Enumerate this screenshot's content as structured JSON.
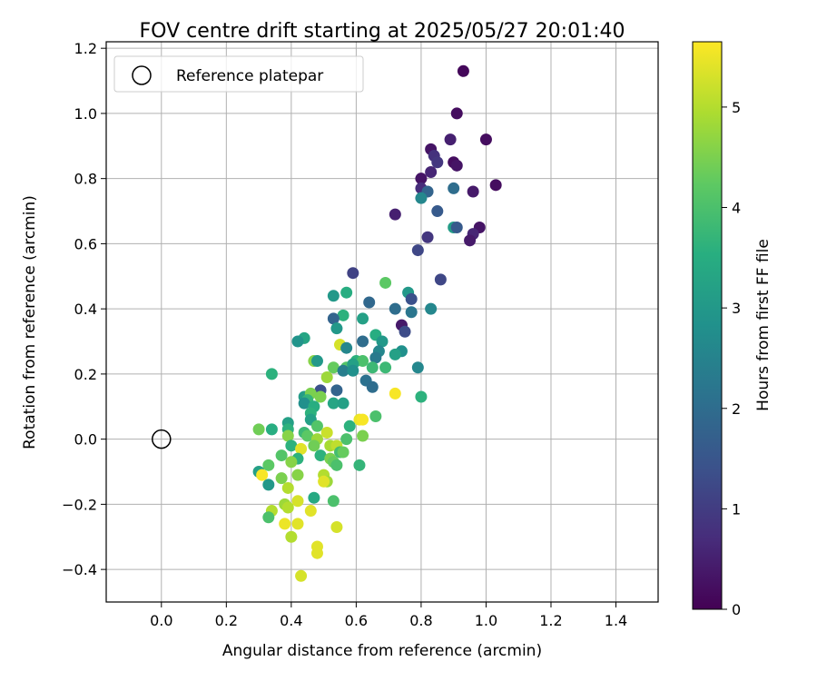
{
  "chart_data": {
    "type": "scatter",
    "title": "FOV centre drift starting at 2025/05/27 20:01:40",
    "xlabel": "Angular distance from reference (arcmin)",
    "ylabel": "Rotation from reference (arcmin)",
    "xlim": [
      -0.17,
      1.53
    ],
    "ylim": [
      -0.5,
      1.22
    ],
    "xticks": [
      "0.0",
      "0.2",
      "0.4",
      "0.6",
      "0.8",
      "1.0",
      "1.2",
      "1.4"
    ],
    "xtick_values": [
      0,
      0.2,
      0.4,
      0.6,
      0.8,
      1.0,
      1.2,
      1.4
    ],
    "yticks": [
      "−0.4",
      "−0.2",
      "0.0",
      "0.2",
      "0.4",
      "0.6",
      "0.8",
      "1.0",
      "1.2"
    ],
    "ytick_values": [
      -0.4,
      -0.2,
      0,
      0.2,
      0.4,
      0.6,
      0.8,
      1.0,
      1.2
    ],
    "grid": true,
    "legend": {
      "position": "top-left",
      "entries": [
        "Reference platepar"
      ]
    },
    "reference_point": {
      "x": 0.0,
      "y": 0.0
    },
    "colorbar": {
      "label": "Hours from first FF file",
      "min": 0,
      "max": 5.65,
      "ticks": [
        "0",
        "1",
        "2",
        "3",
        "4",
        "5"
      ],
      "tick_values": [
        0,
        1,
        2,
        3,
        4,
        5
      ],
      "colormap": "viridis"
    },
    "points": [
      {
        "x": 0.93,
        "y": 1.13,
        "c": 0.1
      },
      {
        "x": 0.91,
        "y": 1.0,
        "c": 0.2
      },
      {
        "x": 1.0,
        "y": 0.92,
        "c": 0.2
      },
      {
        "x": 0.89,
        "y": 0.92,
        "c": 0.5
      },
      {
        "x": 0.83,
        "y": 0.89,
        "c": 0.3
      },
      {
        "x": 0.84,
        "y": 0.87,
        "c": 0.8
      },
      {
        "x": 0.85,
        "y": 0.85,
        "c": 0.9
      },
      {
        "x": 0.9,
        "y": 0.85,
        "c": 0.2
      },
      {
        "x": 0.91,
        "y": 0.84,
        "c": 0.3
      },
      {
        "x": 0.83,
        "y": 0.82,
        "c": 0.6
      },
      {
        "x": 0.8,
        "y": 0.8,
        "c": 0.3
      },
      {
        "x": 1.03,
        "y": 0.78,
        "c": 0.2
      },
      {
        "x": 0.8,
        "y": 0.77,
        "c": 0.7
      },
      {
        "x": 0.82,
        "y": 0.76,
        "c": 1.8
      },
      {
        "x": 0.9,
        "y": 0.77,
        "c": 2.0
      },
      {
        "x": 0.96,
        "y": 0.76,
        "c": 0.4
      },
      {
        "x": 0.8,
        "y": 0.74,
        "c": 2.6
      },
      {
        "x": 0.85,
        "y": 0.7,
        "c": 1.6
      },
      {
        "x": 0.72,
        "y": 0.69,
        "c": 0.5
      },
      {
        "x": 0.9,
        "y": 0.65,
        "c": 3.1
      },
      {
        "x": 0.91,
        "y": 0.65,
        "c": 1.6
      },
      {
        "x": 0.98,
        "y": 0.65,
        "c": 0.3
      },
      {
        "x": 0.96,
        "y": 0.63,
        "c": 0.6
      },
      {
        "x": 0.82,
        "y": 0.62,
        "c": 0.9
      },
      {
        "x": 0.95,
        "y": 0.61,
        "c": 0.4
      },
      {
        "x": 0.79,
        "y": 0.58,
        "c": 1.2
      },
      {
        "x": 0.59,
        "y": 0.51,
        "c": 1.1
      },
      {
        "x": 0.86,
        "y": 0.49,
        "c": 1.2
      },
      {
        "x": 0.69,
        "y": 0.48,
        "c": 4.2
      },
      {
        "x": 0.76,
        "y": 0.45,
        "c": 3.0
      },
      {
        "x": 0.53,
        "y": 0.44,
        "c": 3.0
      },
      {
        "x": 0.57,
        "y": 0.45,
        "c": 3.5
      },
      {
        "x": 0.64,
        "y": 0.42,
        "c": 1.9
      },
      {
        "x": 0.77,
        "y": 0.43,
        "c": 1.4
      },
      {
        "x": 0.72,
        "y": 0.4,
        "c": 2.0
      },
      {
        "x": 0.77,
        "y": 0.39,
        "c": 2.2
      },
      {
        "x": 0.83,
        "y": 0.4,
        "c": 2.6
      },
      {
        "x": 0.56,
        "y": 0.38,
        "c": 3.6
      },
      {
        "x": 0.53,
        "y": 0.37,
        "c": 1.8
      },
      {
        "x": 0.62,
        "y": 0.37,
        "c": 3.2
      },
      {
        "x": 0.74,
        "y": 0.35,
        "c": 0.4
      },
      {
        "x": 0.54,
        "y": 0.34,
        "c": 3.0
      },
      {
        "x": 0.75,
        "y": 0.33,
        "c": 1.3
      },
      {
        "x": 0.66,
        "y": 0.32,
        "c": 3.5
      },
      {
        "x": 0.44,
        "y": 0.31,
        "c": 3.3
      },
      {
        "x": 0.42,
        "y": 0.3,
        "c": 2.9
      },
      {
        "x": 0.62,
        "y": 0.3,
        "c": 2.0
      },
      {
        "x": 0.68,
        "y": 0.3,
        "c": 3.0
      },
      {
        "x": 0.55,
        "y": 0.29,
        "c": 5.3
      },
      {
        "x": 0.57,
        "y": 0.28,
        "c": 2.6
      },
      {
        "x": 0.67,
        "y": 0.27,
        "c": 2.6
      },
      {
        "x": 0.74,
        "y": 0.27,
        "c": 2.8
      },
      {
        "x": 0.72,
        "y": 0.26,
        "c": 3.2
      },
      {
        "x": 0.66,
        "y": 0.25,
        "c": 2.3
      },
      {
        "x": 0.47,
        "y": 0.24,
        "c": 4.6
      },
      {
        "x": 0.48,
        "y": 0.24,
        "c": 3.0
      },
      {
        "x": 0.6,
        "y": 0.24,
        "c": 3.6
      },
      {
        "x": 0.62,
        "y": 0.24,
        "c": 4.0
      },
      {
        "x": 0.53,
        "y": 0.22,
        "c": 4.3
      },
      {
        "x": 0.57,
        "y": 0.22,
        "c": 4.1
      },
      {
        "x": 0.59,
        "y": 0.23,
        "c": 3.2
      },
      {
        "x": 0.65,
        "y": 0.22,
        "c": 3.8
      },
      {
        "x": 0.69,
        "y": 0.22,
        "c": 3.8
      },
      {
        "x": 0.79,
        "y": 0.22,
        "c": 2.6
      },
      {
        "x": 0.34,
        "y": 0.2,
        "c": 3.6
      },
      {
        "x": 0.56,
        "y": 0.21,
        "c": 2.4
      },
      {
        "x": 0.59,
        "y": 0.21,
        "c": 2.8
      },
      {
        "x": 0.51,
        "y": 0.19,
        "c": 4.8
      },
      {
        "x": 0.63,
        "y": 0.18,
        "c": 2.1
      },
      {
        "x": 0.65,
        "y": 0.16,
        "c": 2.0
      },
      {
        "x": 0.49,
        "y": 0.15,
        "c": 1.4
      },
      {
        "x": 0.54,
        "y": 0.15,
        "c": 1.8
      },
      {
        "x": 0.44,
        "y": 0.13,
        "c": 3.1
      },
      {
        "x": 0.46,
        "y": 0.14,
        "c": 4.5
      },
      {
        "x": 0.45,
        "y": 0.12,
        "c": 3.7
      },
      {
        "x": 0.49,
        "y": 0.13,
        "c": 4.5
      },
      {
        "x": 0.72,
        "y": 0.14,
        "c": 5.6
      },
      {
        "x": 0.8,
        "y": 0.13,
        "c": 3.6
      },
      {
        "x": 0.44,
        "y": 0.11,
        "c": 2.8
      },
      {
        "x": 0.53,
        "y": 0.11,
        "c": 3.3
      },
      {
        "x": 0.56,
        "y": 0.11,
        "c": 3.2
      },
      {
        "x": 0.47,
        "y": 0.1,
        "c": 3.5
      },
      {
        "x": 0.46,
        "y": 0.08,
        "c": 3.6
      },
      {
        "x": 0.46,
        "y": 0.06,
        "c": 3.2
      },
      {
        "x": 0.61,
        "y": 0.06,
        "c": 5.5
      },
      {
        "x": 0.62,
        "y": 0.06,
        "c": 5.6
      },
      {
        "x": 0.66,
        "y": 0.07,
        "c": 4.0
      },
      {
        "x": 0.39,
        "y": 0.05,
        "c": 3.2
      },
      {
        "x": 0.48,
        "y": 0.04,
        "c": 4.1
      },
      {
        "x": 0.58,
        "y": 0.04,
        "c": 3.6
      },
      {
        "x": 0.3,
        "y": 0.03,
        "c": 4.4
      },
      {
        "x": 0.34,
        "y": 0.03,
        "c": 3.5
      },
      {
        "x": 0.39,
        "y": 0.03,
        "c": 3.6
      },
      {
        "x": 0.51,
        "y": 0.02,
        "c": 5.2
      },
      {
        "x": 0.44,
        "y": 0.02,
        "c": 3.8
      },
      {
        "x": 0.39,
        "y": 0.01,
        "c": 4.6
      },
      {
        "x": 0.45,
        "y": 0.01,
        "c": 4.2
      },
      {
        "x": 0.48,
        "y": 0.0,
        "c": 4.8
      },
      {
        "x": 0.57,
        "y": 0.0,
        "c": 4.0
      },
      {
        "x": 0.62,
        "y": 0.01,
        "c": 4.5
      },
      {
        "x": 0.4,
        "y": -0.02,
        "c": 3.6
      },
      {
        "x": 0.43,
        "y": -0.03,
        "c": 5.4
      },
      {
        "x": 0.47,
        "y": -0.02,
        "c": 4.4
      },
      {
        "x": 0.52,
        "y": -0.02,
        "c": 4.9
      },
      {
        "x": 0.54,
        "y": -0.02,
        "c": 5.1
      },
      {
        "x": 0.55,
        "y": -0.04,
        "c": 3.9
      },
      {
        "x": 0.56,
        "y": -0.04,
        "c": 4.3
      },
      {
        "x": 0.49,
        "y": -0.05,
        "c": 3.6
      },
      {
        "x": 0.37,
        "y": -0.05,
        "c": 4.1
      },
      {
        "x": 0.42,
        "y": -0.06,
        "c": 3.6
      },
      {
        "x": 0.52,
        "y": -0.06,
        "c": 4.5
      },
      {
        "x": 0.4,
        "y": -0.07,
        "c": 4.6
      },
      {
        "x": 0.53,
        "y": -0.07,
        "c": 4.3
      },
      {
        "x": 0.54,
        "y": -0.08,
        "c": 4.0
      },
      {
        "x": 0.61,
        "y": -0.08,
        "c": 3.7
      },
      {
        "x": 0.33,
        "y": -0.08,
        "c": 4.2
      },
      {
        "x": 0.3,
        "y": -0.1,
        "c": 3.2
      },
      {
        "x": 0.31,
        "y": -0.11,
        "c": 5.6
      },
      {
        "x": 0.37,
        "y": -0.12,
        "c": 4.5
      },
      {
        "x": 0.42,
        "y": -0.11,
        "c": 4.6
      },
      {
        "x": 0.5,
        "y": -0.11,
        "c": 5.0
      },
      {
        "x": 0.51,
        "y": -0.13,
        "c": 4.8
      },
      {
        "x": 0.5,
        "y": -0.13,
        "c": 5.4
      },
      {
        "x": 0.33,
        "y": -0.14,
        "c": 3.0
      },
      {
        "x": 0.39,
        "y": -0.15,
        "c": 5.0
      },
      {
        "x": 0.47,
        "y": -0.18,
        "c": 3.4
      },
      {
        "x": 0.53,
        "y": -0.19,
        "c": 4.0
      },
      {
        "x": 0.42,
        "y": -0.19,
        "c": 5.3
      },
      {
        "x": 0.38,
        "y": -0.2,
        "c": 4.8
      },
      {
        "x": 0.39,
        "y": -0.21,
        "c": 5.0
      },
      {
        "x": 0.46,
        "y": -0.22,
        "c": 5.4
      },
      {
        "x": 0.34,
        "y": -0.22,
        "c": 5.0
      },
      {
        "x": 0.33,
        "y": -0.24,
        "c": 4.0
      },
      {
        "x": 0.38,
        "y": -0.26,
        "c": 5.5
      },
      {
        "x": 0.42,
        "y": -0.26,
        "c": 5.4
      },
      {
        "x": 0.54,
        "y": -0.27,
        "c": 5.3
      },
      {
        "x": 0.4,
        "y": -0.3,
        "c": 5.0
      },
      {
        "x": 0.48,
        "y": -0.33,
        "c": 5.4
      },
      {
        "x": 0.48,
        "y": -0.35,
        "c": 5.4
      },
      {
        "x": 0.43,
        "y": -0.42,
        "c": 5.3
      }
    ]
  }
}
